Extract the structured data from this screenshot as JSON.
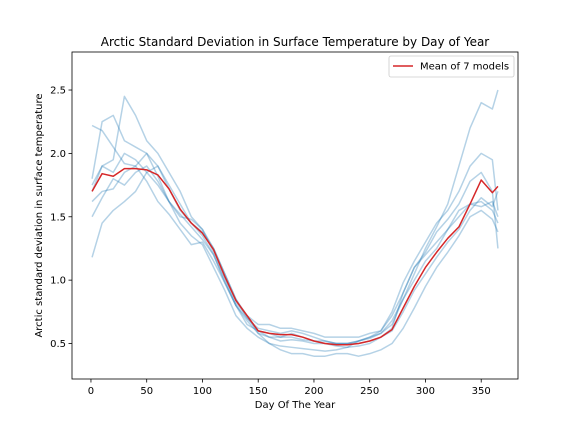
{
  "chart_data": {
    "type": "line",
    "title": "Arctic Standard Deviation in Surface Temperature by Day of Year",
    "xlabel": "Day Of The Year",
    "ylabel": "Arctic standard deviation in surface temperature",
    "xlim": [
      -17,
      383
    ],
    "ylim": [
      0.22,
      2.8
    ],
    "xticks": [
      0,
      50,
      100,
      150,
      200,
      250,
      300,
      350
    ],
    "xtick_labels": [
      "0",
      "50",
      "100",
      "150",
      "200",
      "250",
      "300",
      "350"
    ],
    "yticks": [
      0.5,
      1.0,
      1.5,
      2.0,
      2.5
    ],
    "ytick_labels": [
      "0.5",
      "1.0",
      "1.5",
      "2.0",
      "2.5"
    ],
    "grid": false,
    "legend": {
      "position": "upper right",
      "entries": [
        "Mean of 7 models"
      ]
    },
    "colors": {
      "models": "#1f77b4",
      "mean": "#d62728"
    },
    "x_knots": [
      1,
      10,
      20,
      30,
      40,
      50,
      60,
      70,
      80,
      90,
      100,
      110,
      120,
      130,
      140,
      150,
      160,
      170,
      180,
      190,
      200,
      210,
      220,
      230,
      240,
      250,
      260,
      270,
      280,
      290,
      300,
      310,
      320,
      330,
      340,
      350,
      360,
      365
    ],
    "series": [
      {
        "name": "Mean of 7 models",
        "values": [
          1.7,
          1.84,
          1.82,
          1.88,
          1.88,
          1.87,
          1.83,
          1.72,
          1.56,
          1.45,
          1.37,
          1.24,
          1.03,
          0.84,
          0.72,
          0.6,
          0.58,
          0.57,
          0.57,
          0.55,
          0.52,
          0.5,
          0.49,
          0.49,
          0.5,
          0.52,
          0.55,
          0.61,
          0.78,
          0.95,
          1.1,
          1.22,
          1.33,
          1.42,
          1.6,
          1.79,
          1.69,
          1.74
        ]
      },
      {
        "values": [
          1.62,
          1.7,
          1.72,
          1.85,
          1.9,
          2.0,
          1.82,
          1.62,
          1.45,
          1.35,
          1.28,
          1.1,
          0.92,
          0.72,
          0.62,
          0.55,
          0.5,
          0.48,
          0.47,
          0.46,
          0.45,
          0.44,
          0.45,
          0.47,
          0.48,
          0.5,
          0.55,
          0.62,
          0.9,
          1.1,
          1.22,
          1.38,
          1.48,
          1.6,
          1.78,
          1.85,
          1.7,
          1.25
        ]
      },
      {
        "values": [
          2.22,
          2.18,
          2.05,
          1.92,
          1.9,
          1.78,
          1.62,
          1.52,
          1.4,
          1.28,
          1.3,
          1.15,
          0.98,
          0.8,
          0.68,
          0.58,
          0.55,
          0.52,
          0.53,
          0.52,
          0.5,
          0.5,
          0.48,
          0.47,
          0.52,
          0.55,
          0.6,
          0.75,
          0.98,
          1.15,
          1.3,
          1.45,
          1.55,
          1.7,
          1.9,
          2.0,
          1.95,
          1.55
        ]
      },
      {
        "values": [
          1.8,
          2.25,
          2.3,
          2.1,
          2.05,
          2.0,
          1.9,
          1.75,
          1.6,
          1.45,
          1.35,
          1.2,
          1.0,
          0.8,
          0.65,
          0.6,
          0.58,
          0.55,
          0.55,
          0.53,
          0.52,
          0.52,
          0.5,
          0.5,
          0.52,
          0.54,
          0.58,
          0.68,
          0.85,
          1.0,
          1.15,
          1.25,
          1.4,
          1.55,
          1.6,
          1.58,
          1.62,
          1.5
        ]
      },
      {
        "values": [
          1.7,
          1.9,
          1.95,
          2.45,
          2.3,
          2.1,
          2.0,
          1.85,
          1.7,
          1.5,
          1.4,
          1.25,
          1.05,
          0.85,
          0.7,
          0.62,
          0.6,
          0.58,
          0.6,
          0.58,
          0.55,
          0.52,
          0.5,
          0.5,
          0.5,
          0.52,
          0.55,
          0.6,
          0.75,
          0.92,
          1.05,
          1.18,
          1.3,
          1.4,
          1.55,
          1.65,
          1.58,
          1.7
        ]
      },
      {
        "values": [
          1.18,
          1.45,
          1.55,
          1.62,
          1.7,
          1.85,
          1.9,
          1.72,
          1.55,
          1.45,
          1.38,
          1.25,
          1.05,
          0.85,
          0.72,
          0.58,
          0.5,
          0.45,
          0.42,
          0.42,
          0.4,
          0.4,
          0.42,
          0.42,
          0.4,
          0.42,
          0.45,
          0.5,
          0.62,
          0.78,
          0.95,
          1.1,
          1.22,
          1.35,
          1.5,
          1.55,
          1.48,
          1.38
        ]
      },
      {
        "values": [
          1.5,
          1.65,
          1.8,
          1.75,
          1.85,
          1.9,
          1.78,
          1.62,
          1.5,
          1.48,
          1.4,
          1.22,
          1.02,
          0.82,
          0.72,
          0.65,
          0.65,
          0.62,
          0.62,
          0.6,
          0.58,
          0.55,
          0.55,
          0.55,
          0.55,
          0.58,
          0.6,
          0.72,
          0.9,
          1.1,
          1.2,
          1.3,
          1.4,
          1.5,
          1.6,
          1.62,
          1.55,
          1.45
        ]
      },
      {
        "values": [
          1.75,
          1.9,
          1.85,
          2.0,
          1.95,
          1.85,
          1.75,
          1.62,
          1.52,
          1.42,
          1.32,
          1.2,
          0.98,
          0.8,
          0.7,
          0.6,
          0.55,
          0.55,
          0.58,
          0.55,
          0.52,
          0.5,
          0.5,
          0.5,
          0.52,
          0.55,
          0.58,
          0.65,
          0.85,
          1.05,
          1.25,
          1.42,
          1.6,
          1.9,
          2.2,
          2.4,
          2.35,
          2.5
        ]
      }
    ]
  }
}
